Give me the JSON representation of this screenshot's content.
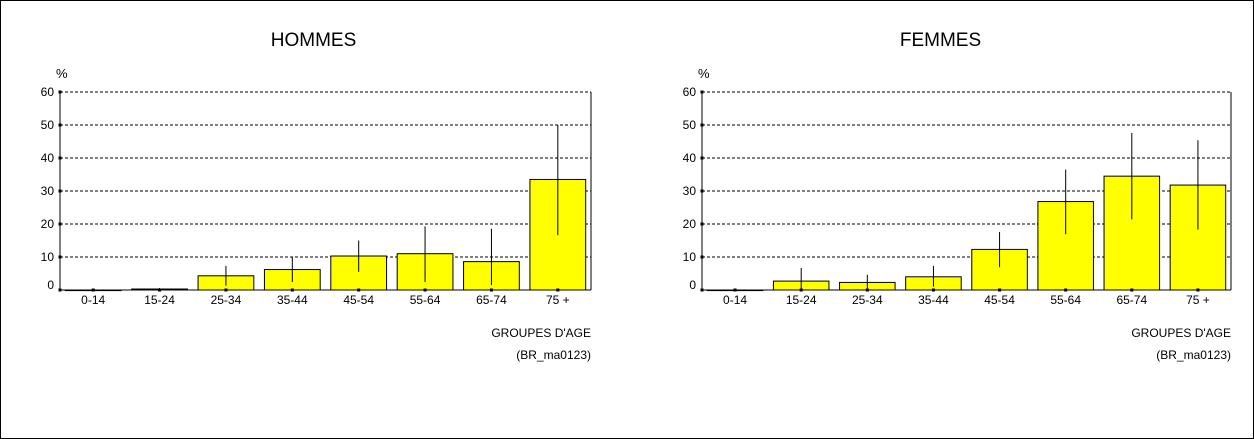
{
  "chart_data": [
    {
      "type": "bar",
      "title": "HOMMES",
      "ylabel": "%",
      "xlabel": "GROUPES D'AGE",
      "source": "(BR_ma0123)",
      "categories": [
        "0-14",
        "15-24",
        "25-34",
        "35-44",
        "45-54",
        "55-64",
        "65-74",
        "75 +"
      ],
      "values": [
        0,
        0.3,
        4.3,
        6.2,
        10.3,
        11,
        8.6,
        33.5
      ],
      "error_low": [
        0,
        0,
        1.3,
        2.4,
        5.5,
        2.4,
        1.5,
        16.6
      ],
      "error_high": [
        0,
        0.6,
        7.3,
        10,
        15,
        19.3,
        18.6,
        50
      ],
      "ylim": [
        0,
        60
      ],
      "yticks": [
        0,
        10,
        20,
        30,
        40,
        50,
        60
      ],
      "grid": true,
      "bar_color": "#ffff00"
    },
    {
      "type": "bar",
      "title": "FEMMES",
      "ylabel": "%",
      "xlabel": "GROUPES D'AGE",
      "source": "(BR_ma0123)",
      "categories": [
        "0-14",
        "15-24",
        "25-34",
        "35-44",
        "45-54",
        "55-64",
        "65-74",
        "75 +"
      ],
      "values": [
        0,
        2.7,
        2.3,
        4,
        12.3,
        26.8,
        34.5,
        31.8
      ],
      "error_low": [
        0,
        0,
        0,
        1,
        6.9,
        16.9,
        21.4,
        18.3
      ],
      "error_high": [
        0,
        6.7,
        4.6,
        7.3,
        17.6,
        36.5,
        47.6,
        45.4
      ],
      "ylim": [
        0,
        60
      ],
      "yticks": [
        0,
        10,
        20,
        30,
        40,
        50,
        60
      ],
      "grid": true,
      "bar_color": "#ffff00"
    }
  ]
}
